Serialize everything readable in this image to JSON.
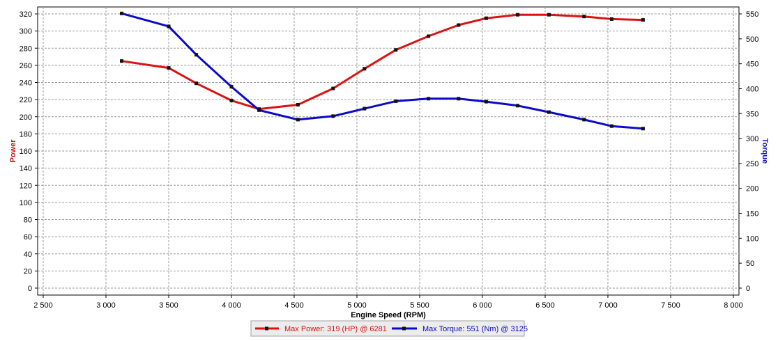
{
  "colors": {
    "power": "#dd1111",
    "torque": "#0a0ac8",
    "grid": "#9a9a9a",
    "marker": "#111111"
  },
  "chart_data": {
    "type": "line",
    "title": "",
    "xlabel": "Engine Speed (RPM)",
    "ylabel_left": "Power",
    "ylabel_right": "Torque",
    "xlim": [
      2500,
      8000
    ],
    "ylim_left": [
      0,
      320
    ],
    "ylim_right": [
      0,
      550
    ],
    "x_ticks": [
      2500,
      3000,
      3500,
      4000,
      4500,
      5000,
      5500,
      6000,
      6500,
      7000,
      7500,
      8000
    ],
    "x_tick_labels": [
      "2 500",
      "3 000",
      "3 500",
      "4 000",
      "4 500",
      "5 000",
      "5 500",
      "6 000",
      "6 500",
      "7 000",
      "7 500",
      "8 000"
    ],
    "y_ticks_left": [
      0,
      20,
      40,
      60,
      80,
      100,
      120,
      140,
      160,
      180,
      200,
      220,
      240,
      260,
      280,
      300,
      320
    ],
    "y_ticks_right": [
      0,
      50,
      100,
      150,
      200,
      250,
      300,
      350,
      400,
      450,
      500,
      550
    ],
    "grid": true,
    "legend_position": "bottom",
    "series": [
      {
        "id": "power",
        "name": "Max Power: 319 (HP) @ 6281",
        "axis": "left",
        "x": [
          3125,
          3500,
          3720,
          4000,
          4220,
          4530,
          4810,
          5060,
          5310,
          5570,
          5810,
          6030,
          6281,
          6530,
          6810,
          7030,
          7280
        ],
        "y": [
          265,
          257,
          239,
          219,
          209,
          214,
          233,
          256,
          278,
          294,
          307,
          315,
          319,
          319,
          317,
          314,
          313
        ]
      },
      {
        "id": "torque",
        "name": "Max Torque: 551 (Nm) @ 3125",
        "axis": "right",
        "x": [
          3125,
          3500,
          3720,
          4000,
          4220,
          4530,
          4810,
          5060,
          5310,
          5570,
          5810,
          6030,
          6281,
          6530,
          6810,
          7030,
          7280
        ],
        "y": [
          551,
          525,
          468,
          404,
          357,
          338,
          345,
          360,
          375,
          380,
          380,
          374,
          366,
          353,
          338,
          325,
          320
        ]
      }
    ]
  }
}
